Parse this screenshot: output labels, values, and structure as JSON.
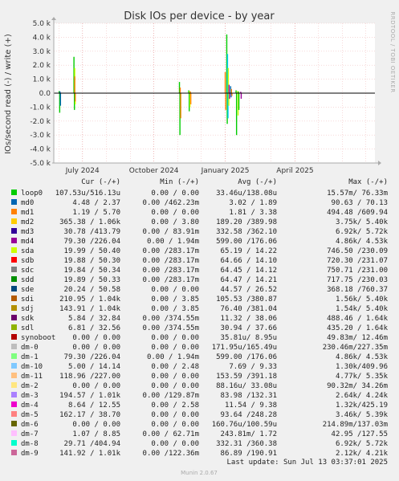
{
  "chart_data": {
    "type": "line",
    "title": "Disk IOs per device - by year",
    "ylabel": "IOs/second read (-) / write (+)",
    "side_text": "RRDTOOL / TOBI OETIKER",
    "ylim": [
      -5000,
      5000
    ],
    "y_ticks": [
      {
        "v": 5000,
        "label": "5.0 k"
      },
      {
        "v": 4000,
        "label": "4.0 k"
      },
      {
        "v": 3000,
        "label": "3.0 k"
      },
      {
        "v": 2000,
        "label": "2.0 k"
      },
      {
        "v": 1000,
        "label": "1.0 k"
      },
      {
        "v": 0,
        "label": "0.0"
      },
      {
        "v": -1000,
        "label": "-1.0 k"
      },
      {
        "v": -2000,
        "label": "-2.0 k"
      },
      {
        "v": -3000,
        "label": "-3.0 k"
      },
      {
        "v": -4000,
        "label": "-4.0 k"
      },
      {
        "v": -5000,
        "label": "-5.0 k"
      }
    ],
    "x_range": [
      "2024-05-25",
      "2025-07-13"
    ],
    "x_ticks": [
      {
        "date": "2024-07-01",
        "label": "July 2024"
      },
      {
        "date": "2024-10-01",
        "label": "October 2024"
      },
      {
        "date": "2025-01-01",
        "label": "January 2025"
      },
      {
        "date": "2025-04-01",
        "label": "April 2025"
      }
    ],
    "grid": true,
    "spikes": [
      {
        "date": "2024-06-01",
        "up": 150,
        "down": -1400,
        "color": "#00cc00"
      },
      {
        "date": "2024-06-02",
        "up": 120,
        "down": -900,
        "color": "#0066b3"
      },
      {
        "date": "2024-06-20",
        "up": 2600,
        "down": -1200,
        "color": "#00cc00"
      },
      {
        "date": "2024-06-21",
        "up": 1800,
        "down": -800,
        "color": "#ccff00"
      },
      {
        "date": "2024-06-21",
        "up": 1200,
        "down": -600,
        "color": "#ff8000"
      },
      {
        "date": "2024-11-03",
        "up": 800,
        "down": -3000,
        "color": "#00cc00"
      },
      {
        "date": "2024-11-04",
        "up": 400,
        "down": -1800,
        "color": "#ff8000"
      },
      {
        "date": "2024-11-15",
        "up": 200,
        "down": -1300,
        "color": "#00cc00"
      },
      {
        "date": "2024-11-16",
        "up": 150,
        "down": -1000,
        "color": "#ccff00"
      },
      {
        "date": "2024-11-17",
        "up": 120,
        "down": -800,
        "color": "#ff8000"
      },
      {
        "date": "2025-01-01",
        "up": 1500,
        "down": -1200,
        "color": "#ff8000"
      },
      {
        "date": "2025-01-03",
        "up": 4200,
        "down": -2200,
        "color": "#00cc00"
      },
      {
        "date": "2025-01-04",
        "up": 2800,
        "down": -1800,
        "color": "#00ccff"
      },
      {
        "date": "2025-01-05",
        "up": 1800,
        "down": -900,
        "color": "#ccff00"
      },
      {
        "date": "2025-01-06",
        "up": 600,
        "down": -400,
        "color": "#990099"
      },
      {
        "date": "2025-01-08",
        "up": 500,
        "down": -300,
        "color": "#0066b3"
      },
      {
        "date": "2025-01-09",
        "up": 300,
        "down": -200,
        "color": "#ff8000"
      },
      {
        "date": "2025-01-15",
        "up": 200,
        "down": -3000,
        "color": "#00cc00"
      },
      {
        "date": "2025-01-17",
        "up": 150,
        "down": -1600,
        "color": "#ccff00"
      },
      {
        "date": "2025-01-18",
        "up": 120,
        "down": -1200,
        "color": "#00cc00"
      },
      {
        "date": "2025-01-21",
        "up": 100,
        "down": -400,
        "color": "#990099"
      }
    ],
    "legend": {
      "headers": [
        "Cur (-/+)",
        "Min (-/+)",
        "Avg (-/+)",
        "Max (-/+)"
      ],
      "rows": [
        {
          "name": "loop0",
          "color": "#00cc00",
          "cur": "107.53u/516.13u",
          "min": "0.00 /  0.00",
          "avg": "33.46u/138.08u",
          "max": "15.57m/ 76.33m"
        },
        {
          "name": "md0",
          "color": "#0066b3",
          "cur": "4.48 /  2.37",
          "min": "0.00 /462.23m",
          "avg": "3.02 /  1.89",
          "max": "90.63 / 70.13"
        },
        {
          "name": "md1",
          "color": "#ff8000",
          "cur": "1.19 /  5.70",
          "min": "0.00 /  0.00",
          "avg": "1.81 /  3.38",
          "max": "494.48 /609.94"
        },
        {
          "name": "md2",
          "color": "#ffcc00",
          "cur": "365.38 /  1.06k",
          "min": "0.00 /  3.80",
          "avg": "189.20 /389.98",
          "max": "3.75k/  5.40k"
        },
        {
          "name": "md3",
          "color": "#330099",
          "cur": "30.78 /413.79",
          "min": "0.00 / 83.91m",
          "avg": "332.58 /362.10",
          "max": "6.92k/  5.72k"
        },
        {
          "name": "md4",
          "color": "#990099",
          "cur": "79.30 /226.04",
          "min": "0.00 /  1.94m",
          "avg": "599.00 /176.06",
          "max": "4.86k/  4.53k"
        },
        {
          "name": "sda",
          "color": "#ccff00",
          "cur": "19.99 / 50.40",
          "min": "0.00 /283.17m",
          "avg": "65.19 / 14.22",
          "max": "746.50 /230.09"
        },
        {
          "name": "sdb",
          "color": "#ff0000",
          "cur": "19.88 / 50.30",
          "min": "0.00 /283.17m",
          "avg": "64.66 / 14.10",
          "max": "720.30 /231.07"
        },
        {
          "name": "sdc",
          "color": "#808080",
          "cur": "19.84 / 50.34",
          "min": "0.00 /283.17m",
          "avg": "64.45 / 14.12",
          "max": "750.71 /231.00"
        },
        {
          "name": "sdd",
          "color": "#008f00",
          "cur": "19.89 / 50.33",
          "min": "0.00 /283.17m",
          "avg": "64.47 / 14.21",
          "max": "717.75 /230.03"
        },
        {
          "name": "sde",
          "color": "#00487d",
          "cur": "20.24 / 50.58",
          "min": "0.00 /  0.00",
          "avg": "44.57 / 26.52",
          "max": "368.18 /760.37"
        },
        {
          "name": "sdi",
          "color": "#b35a00",
          "cur": "210.95 /  1.04k",
          "min": "0.00 /  3.85",
          "avg": "105.53 /380.87",
          "max": "1.56k/  5.40k"
        },
        {
          "name": "sdj",
          "color": "#b38f00",
          "cur": "143.91 /  1.04k",
          "min": "0.00 /  3.85",
          "avg": "76.40 /381.04",
          "max": "1.54k/  5.40k"
        },
        {
          "name": "sdk",
          "color": "#6b006b",
          "cur": "5.84 / 32.84",
          "min": "0.00 /374.55m",
          "avg": "11.32 / 38.06",
          "max": "488.46 /  1.64k"
        },
        {
          "name": "sdl",
          "color": "#8fb300",
          "cur": "6.81 / 32.56",
          "min": "0.00 /374.55m",
          "avg": "30.94 / 37.66",
          "max": "435.20 /  1.64k"
        },
        {
          "name": "synoboot",
          "color": "#b30000",
          "cur": "0.00 /  0.00",
          "min": "0.00 /  0.00",
          "avg": "35.81u/  8.95u",
          "max": "49.83m/ 12.46m"
        },
        {
          "name": "dm-0",
          "color": "#bebebe",
          "cur": "0.00 /  0.00",
          "min": "0.00 /  0.00",
          "avg": "171.95u/165.49u",
          "max": "230.46m/227.35m"
        },
        {
          "name": "dm-1",
          "color": "#80ff80",
          "cur": "79.30 /226.04",
          "min": "0.00 /  1.94m",
          "avg": "599.00 /176.06",
          "max": "4.86k/  4.53k"
        },
        {
          "name": "dm-10",
          "color": "#80c9ff",
          "cur": "5.00 / 14.14",
          "min": "0.00 /  2.48",
          "avg": "7.69 /  9.33",
          "max": "1.30k/409.96"
        },
        {
          "name": "dm-11",
          "color": "#ffc080",
          "cur": "118.96 /227.00",
          "min": "0.00 /  0.00",
          "avg": "153.59 /391.18",
          "max": "4.77k/  5.35k"
        },
        {
          "name": "dm-2",
          "color": "#ffe680",
          "cur": "0.00 /  0.00",
          "min": "0.00 /  0.00",
          "avg": "88.16u/ 33.08u",
          "max": "90.32m/ 34.26m"
        },
        {
          "name": "dm-3",
          "color": "#aa80ff",
          "cur": "194.57 /  1.01k",
          "min": "0.00 /129.87m",
          "avg": "83.98 /132.31",
          "max": "2.64k/  4.24k"
        },
        {
          "name": "dm-4",
          "color": "#ee00cc",
          "cur": "8.64 / 12.55",
          "min": "0.00 /  2.58",
          "avg": "11.54 /  9.38",
          "max": "1.32k/425.19"
        },
        {
          "name": "dm-5",
          "color": "#ff8080",
          "cur": "162.17 / 38.70",
          "min": "0.00 /  0.00",
          "avg": "93.64 /248.28",
          "max": "3.46k/  5.39k"
        },
        {
          "name": "dm-6",
          "color": "#666600",
          "cur": "0.00 /  0.00",
          "min": "0.00 /  0.00",
          "avg": "160.76u/100.59u",
          "max": "214.89m/137.03m"
        },
        {
          "name": "dm-7",
          "color": "#ffbfff",
          "cur": "1.07 /  8.85",
          "min": "0.00 / 62.71m",
          "avg": "243.81m/  1.72",
          "max": "42.95 /127.55"
        },
        {
          "name": "dm-8",
          "color": "#00ffcc",
          "cur": "29.71 /404.94",
          "min": "0.00 /  0.00",
          "avg": "332.31 /360.38",
          "max": "6.92k/  5.72k"
        },
        {
          "name": "dm-9",
          "color": "#cc6699",
          "cur": "141.92 /  1.01k",
          "min": "0.00 /122.36m",
          "avg": "86.89 /190.91",
          "max": "2.12k/  4.21k"
        }
      ]
    },
    "last_update": "Last update: Sun Jul 13 03:37:01 2025",
    "footer": "Munin 2.0.67"
  }
}
